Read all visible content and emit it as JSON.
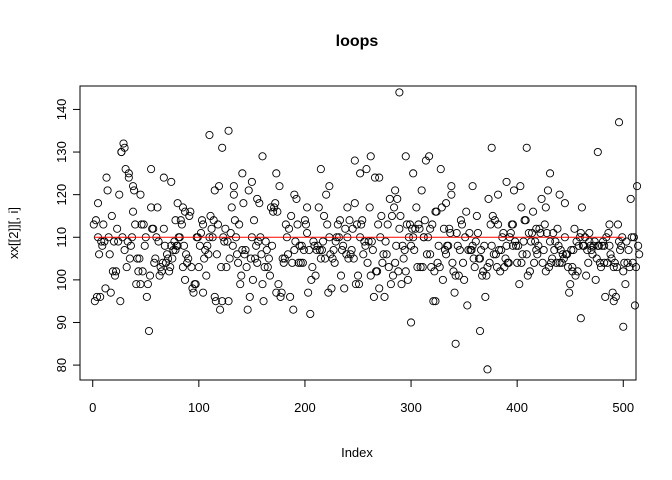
{
  "chart_data": {
    "type": "scatter",
    "title": "loops",
    "xlabel": "Index",
    "ylabel": "xx[[2]][, i]",
    "xlim": [
      -12,
      512
    ],
    "ylim": [
      76.5,
      145.5
    ],
    "x_ticks": [
      0,
      100,
      200,
      300,
      400,
      500
    ],
    "y_ticks": [
      80,
      90,
      100,
      110,
      120,
      130,
      140
    ],
    "x_tick_labels": [
      "0",
      "100",
      "200",
      "300",
      "400",
      "500"
    ],
    "y_tick_labels": [
      "80",
      "90",
      "100",
      "110",
      "120",
      "130",
      "140"
    ],
    "grid": false,
    "marker": "open-circle",
    "point_color": "#000000",
    "reference_line": {
      "y": 110,
      "x_from": 1,
      "x_to": 500,
      "color": "#ff0000"
    },
    "series": [
      {
        "x_start": 1,
        "values": [
          113,
          95,
          114,
          96,
          118,
          106,
          96,
          109,
          108,
          113,
          109,
          98,
          124,
          121,
          110,
          106,
          97,
          115,
          102,
          109,
          101,
          102,
          112,
          109,
          120,
          95,
          130,
          110,
          132,
          107,
          126,
          103,
          109,
          124,
          105,
          108,
          110,
          116,
          121,
          113,
          99,
          105,
          102,
          105,
          99,
          113,
          102,
          113,
          108,
          110,
          96,
          99,
          88,
          101,
          117,
          112,
          112,
          104,
          105,
          110,
          117,
          109,
          101,
          103,
          102,
          104,
          112,
          108,
          104,
          106,
          105,
          102,
          103,
          108,
          105,
          107,
          109,
          107,
          108,
          108,
          110,
          110,
          114,
          113,
          103,
          108,
          100,
          106,
          104,
          105,
          115,
          116,
          103,
          98,
          97,
          99,
          99,
          110,
          110,
          103,
          108,
          111,
          114,
          97,
          105,
          107,
          101,
          108,
          106,
          110,
          115,
          112,
          110,
          114,
          96,
          95,
          106,
          113,
          122,
          93,
          103,
          95,
          110,
          109,
          112,
          103,
          109,
          95,
          105,
          111,
          117,
          108,
          122,
          114,
          110,
          106,
          104,
          113,
          99,
          101,
          107,
          118,
          106,
          107,
          103,
          93,
          121,
          96,
          105,
          110,
          100,
          114,
          105,
          108,
          104,
          109,
          118,
          110,
          106,
          99,
          95,
          103,
          109,
          107,
          103,
          105,
          101,
          117,
          108,
          116,
          117,
          118,
          97,
          116,
          99,
          122,
          96,
          97,
          105,
          104,
          105,
          113,
          110,
          106,
          112,
          96,
          115,
          104,
          93,
          107,
          109,
          119,
          113,
          104,
          108,
          104,
          108,
          104,
          107,
          114,
          113,
          111,
          97,
          107,
          92,
          100,
          103,
          109,
          108,
          101,
          107,
          108,
          117,
          107,
          105,
          107,
          109,
          115,
          105,
          120,
          113,
          97,
          110,
          106,
          98,
          105,
          107,
          104,
          109,
          110,
          113,
          110,
          114,
          101,
          107,
          108,
          98,
          112,
          106,
          110,
          105,
          114,
          106,
          107,
          112,
          105,
          118,
          99,
          113,
          101,
          99,
          110,
          113,
          114,
          106,
          109,
          108,
          126,
          104,
          109,
          117,
          101,
          109,
          107,
          96,
          124,
          102,
          102,
          113,
          98,
          110,
          115,
          104,
          106,
          96,
          109,
          106,
          113,
          103,
          119,
          99,
          115,
          101,
          117,
          104,
          108,
          119,
          102,
          112,
          115,
          99,
          108,
          105,
          107,
          102,
          113,
          100,
          110,
          113,
          108,
          112,
          110,
          107,
          112,
          117,
          103,
          113,
          112,
          103,
          121,
          103,
          110,
          114,
          128,
          106,
          110,
          129,
          106,
          103,
          113,
          95,
          102,
          116,
          116,
          104,
          108,
          103,
          126,
          117,
          100,
          112,
          107,
          106,
          108,
          108,
          112,
          111,
          120,
          104,
          102,
          97,
          101,
          111,
          108,
          101,
          107,
          114,
          113,
          104,
          100,
          110,
          116,
          94,
          107,
          111,
          107,
          107,
          108,
          105,
          103,
          109,
          115,
          111,
          105,
          105,
          107,
          101,
          102,
          108,
          96,
          101,
          103,
          119,
          104,
          113,
          108,
          115,
          106,
          114,
          106,
          103,
          113,
          107,
          102,
          107,
          110,
          111,
          103,
          105,
          108,
          104,
          104,
          110,
          111,
          113,
          113,
          121,
          109,
          108,
          104,
          108,
          99,
          122,
          104,
          106,
          109,
          114,
          114,
          106,
          101,
          111,
          102,
          109,
          111,
          116,
          104,
          109,
          107,
          106,
          108,
          112,
          111,
          119,
          104,
          107,
          113,
          102,
          111,
          121,
          103,
          109,
          104,
          105,
          111,
          107,
          109,
          104,
          112,
          108,
          104,
          107,
          104,
          106,
          105,
          110,
          106,
          106,
          103,
          97,
          99,
          107,
          102,
          107,
          112,
          101,
          109,
          102,
          108,
          110,
          111,
          117,
          108,
          108,
          110,
          101,
          107,
          104,
          111,
          108,
          107,
          106,
          108,
          109,
          100,
          105,
          108,
          108,
          104,
          103,
          108,
          109,
          108,
          96,
          110,
          104,
          111,
          108,
          106,
          105,
          97,
          103,
          104,
          96,
          103,
          113,
          109,
          107,
          108,
          110,
          102,
          104,
          99,
          109,
          104,
          107,
          103,
          119,
          110,
          104,
          110,
          94,
          103,
          122,
          108,
          106
        ]
      },
      {
        "x": [
          5,
          27,
          30,
          34,
          38,
          45,
          55,
          67,
          74,
          78,
          80,
          85,
          87,
          104,
          110,
          115,
          122,
          128,
          133,
          141,
          150,
          155,
          160,
          173,
          190,
          202,
          215,
          223,
          240,
          247,
          252,
          262,
          270,
          285,
          289,
          295,
          300,
          302,
          312,
          318,
          323,
          333,
          338,
          342,
          358,
          365,
          372,
          376,
          382,
          390,
          396,
          404,
          409,
          418,
          427,
          431,
          440,
          445,
          452,
          460,
          468,
          476,
          482,
          487,
          491,
          496,
          500
        ],
        "values": [
          110,
          130,
          131,
          125,
          122,
          120,
          126,
          124,
          123,
          114,
          118,
          117,
          116,
          113,
          134,
          121,
          131,
          135,
          120,
          125,
          123,
          119,
          129,
          125,
          120,
          117,
          126,
          122,
          117,
          128,
          125,
          129,
          124,
          121,
          144,
          129,
          90,
          125,
          110,
          112,
          95,
          118,
          122,
          85,
          122,
          88,
          79,
          131,
          120,
          123,
          108,
          117,
          131,
          112,
          117,
          125,
          120,
          118,
          103,
          91,
          109,
          130,
          104,
          113,
          95,
          137,
          89
        ]
      }
    ]
  }
}
